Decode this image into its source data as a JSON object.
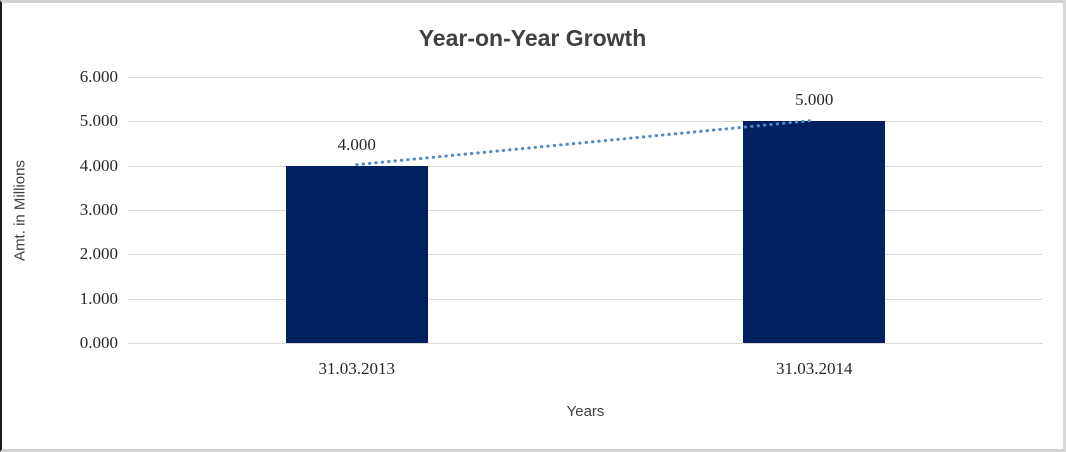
{
  "chart_data": {
    "type": "bar",
    "title": "Year-on-Year Growth",
    "categories": [
      "31.03.2013",
      "31.03.2014"
    ],
    "values": [
      4,
      5
    ],
    "data_labels": [
      "4.000",
      "5.000"
    ],
    "xlabel": "Years",
    "ylabel": "Amt. in Millions",
    "ylim": [
      0,
      6
    ],
    "ytick_step": 1,
    "ytick_labels": [
      "0.000",
      "1.000",
      "2.000",
      "3.000",
      "4.000",
      "5.000",
      "6.000"
    ],
    "grid": true,
    "legend_position": "none",
    "bar_color": "#002060",
    "gridline_color": "#d9d9d9",
    "trendline": {
      "style": "dotted",
      "color": "#4e8ac8",
      "from_value": 4,
      "to_value": 5
    }
  }
}
